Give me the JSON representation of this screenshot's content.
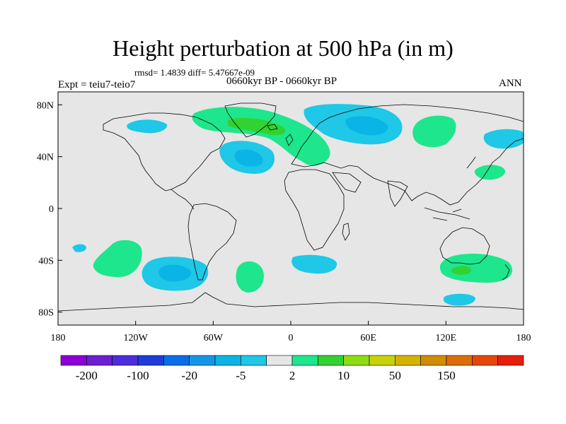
{
  "title": "Height perturbation at 500 hPa (in m)",
  "stats": "rmsd= 1.4839 diff= 5.47667e-09",
  "experiment": "Expt = teiu7-teio7",
  "period": "0660kyr BP - 0660kyr BP",
  "season": "ANN",
  "map": {
    "lon_ticks": [
      "180",
      "120W",
      "60W",
      "0",
      "60E",
      "120E",
      "180"
    ],
    "lat_ticks": [
      "80N",
      "40N",
      "0",
      "40S",
      "80S"
    ],
    "background_color": "#e6e6e6",
    "land_outline_color": "#000000"
  },
  "colorbar": {
    "colors": [
      "#8c00d7",
      "#6e1ed2",
      "#4b2ddc",
      "#1e3cd7",
      "#0a6ee6",
      "#1496e6",
      "#0ab4e6",
      "#1ec8e6",
      "#e6e6e6",
      "#1ee68c",
      "#32d232",
      "#8cdc14",
      "#c8d20a",
      "#d2b400",
      "#d28c00",
      "#dc6e0a",
      "#e6460a",
      "#e61e0a"
    ],
    "labels": [
      "-200",
      "-100",
      "-20",
      "-5",
      "2",
      "10",
      "50",
      "150"
    ]
  },
  "anomalies": [
    {
      "region": "Greenland / North Atlantic",
      "sign": "positive",
      "level_max": "10"
    },
    {
      "region": "Europe",
      "sign": "positive",
      "level_max": "2"
    },
    {
      "region": "Western Russia / Scandinavia",
      "sign": "negative",
      "level_max": "-5"
    },
    {
      "region": "Western North Atlantic",
      "sign": "negative",
      "level_max": "-5"
    },
    {
      "region": "North Pacific near Alaska",
      "sign": "negative",
      "level_max": "-2"
    },
    {
      "region": "East Siberia",
      "sign": "positive",
      "level_max": "2"
    },
    {
      "region": "Southeast Pacific",
      "sign": "negative",
      "level_max": "-5"
    },
    {
      "region": "South Pacific",
      "sign": "positive",
      "level_max": "2"
    },
    {
      "region": "South Atlantic",
      "sign": "positive",
      "level_max": "2"
    },
    {
      "region": "Southern Indian Ocean",
      "sign": "negative",
      "level_max": "-2"
    },
    {
      "region": "South of Australia",
      "sign": "positive",
      "level_max": "10"
    },
    {
      "region": "Southern Ocean south of New Zealand",
      "sign": "negative",
      "level_max": "-2"
    }
  ]
}
